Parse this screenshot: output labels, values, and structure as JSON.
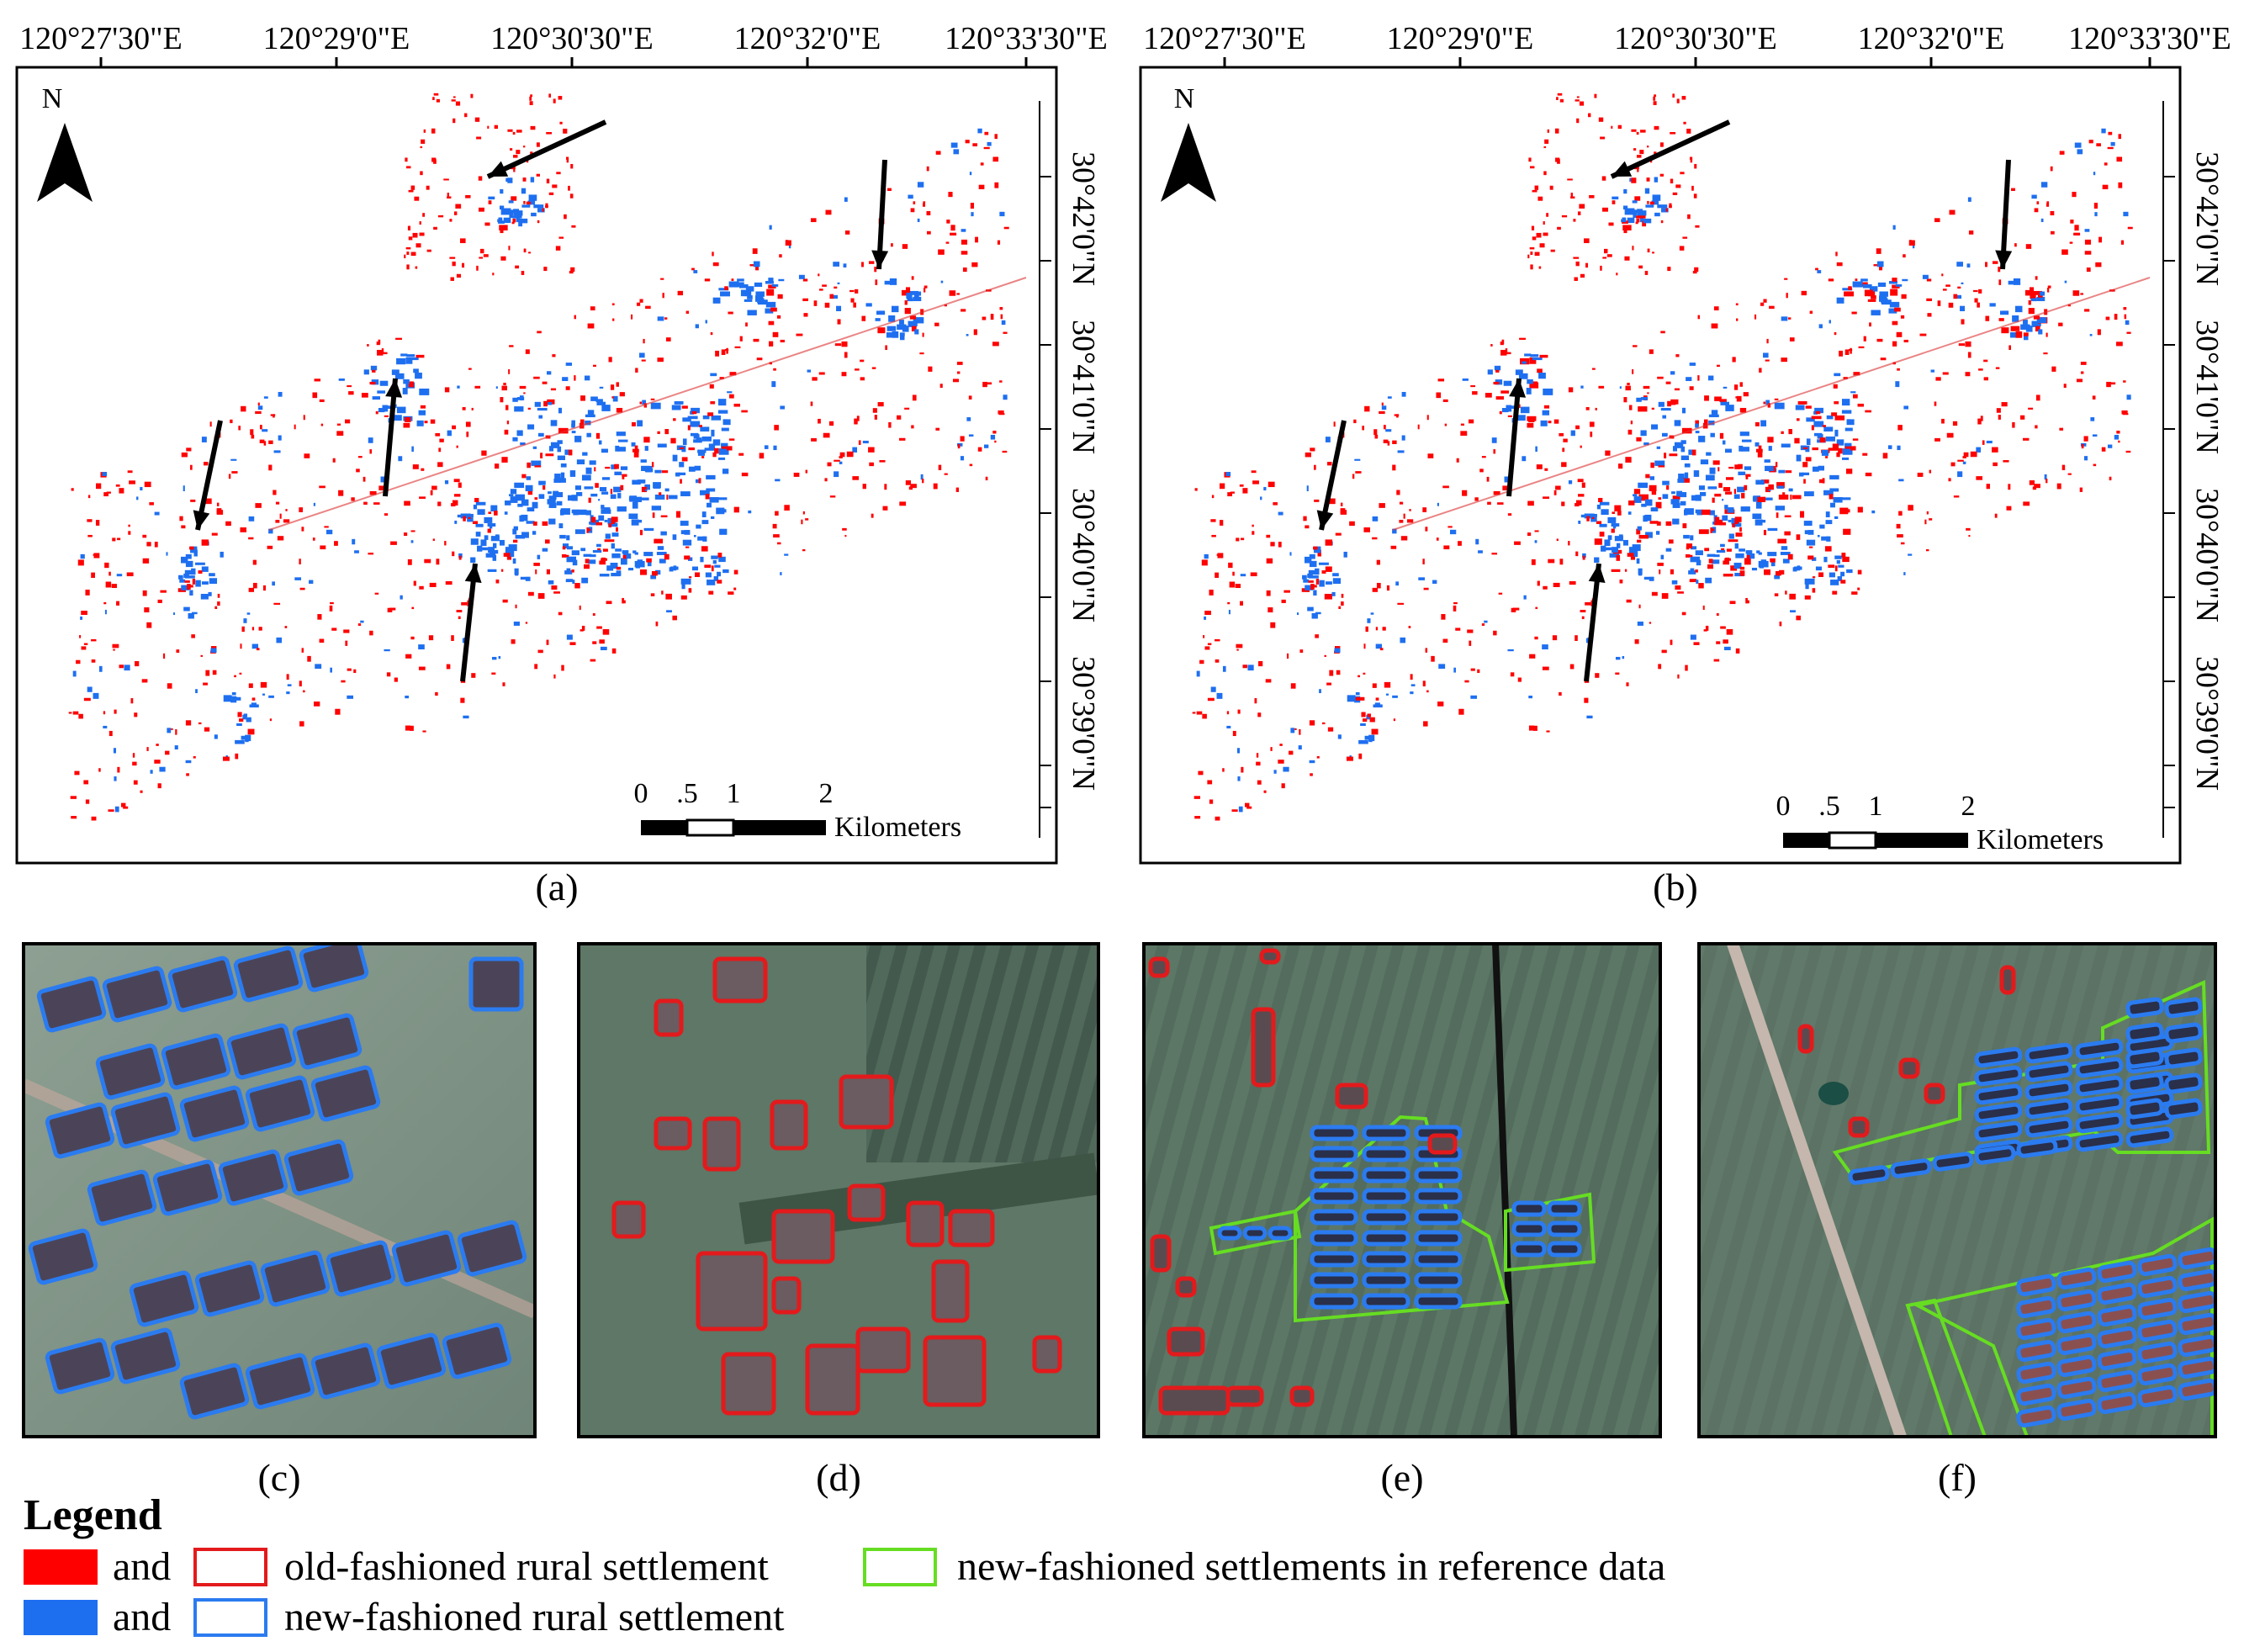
{
  "colors": {
    "old_fill": "#ff0000",
    "new_fill": "#1e6ff0",
    "old_outline": "#e31a1c",
    "new_outline": "#2b7bf0",
    "reference_outline": "#66dd22",
    "frame": "#000000",
    "arrow": "#000000"
  },
  "top_maps": [
    {
      "label": "(a)",
      "north_label": "N",
      "longitude_ticks": [
        "120°27'30\"E",
        "120°29'0\"E",
        "120°30'30\"E",
        "120°32'0\"E",
        "120°33'30\"E"
      ],
      "latitude_ticks": [
        "30°42'0\"N",
        "30°41'0\"N",
        "30°40'0\"N",
        "30°39'0\"N"
      ],
      "latitude_minor_ticks": [
        "30°39'0\"N"
      ],
      "scale_labels": [
        "0",
        ".5",
        "1",
        "2"
      ],
      "scale_units": "Kilometers",
      "arrow_count": 5
    },
    {
      "label": "(b)",
      "north_label": "N",
      "longitude_ticks": [
        "120°27'30\"E",
        "120°29'0\"E",
        "120°30'30\"E",
        "120°32'0\"E",
        "120°33'30\"E"
      ],
      "latitude_ticks": [
        "30°42'0\"N",
        "30°41'0\"N",
        "30°40'0\"N",
        "30°39'0\"N"
      ],
      "latitude_minor_ticks": [
        "30°39'0\"N"
      ],
      "scale_labels": [
        "0",
        ".5",
        "1",
        "2"
      ],
      "scale_units": "Kilometers",
      "arrow_count": 5
    }
  ],
  "detail_panels": [
    {
      "label": "(c)",
      "theme": "new-fashioned rows (blue outlines)"
    },
    {
      "label": "(d)",
      "theme": "old-fashioned clusters (red outlines)"
    },
    {
      "label": "(e)",
      "theme": "mixed with reference polygon"
    },
    {
      "label": "(f)",
      "theme": "new-fashioned with reference polygon"
    }
  ],
  "legend": {
    "title": "Legend",
    "rows": [
      {
        "connector": "and",
        "label": "old-fashioned rural settlement",
        "kind": "old"
      },
      {
        "connector": "and",
        "label": "new-fashioned rural settlement",
        "kind": "new"
      }
    ],
    "reference_label": "new-fashioned settlements in reference data"
  }
}
